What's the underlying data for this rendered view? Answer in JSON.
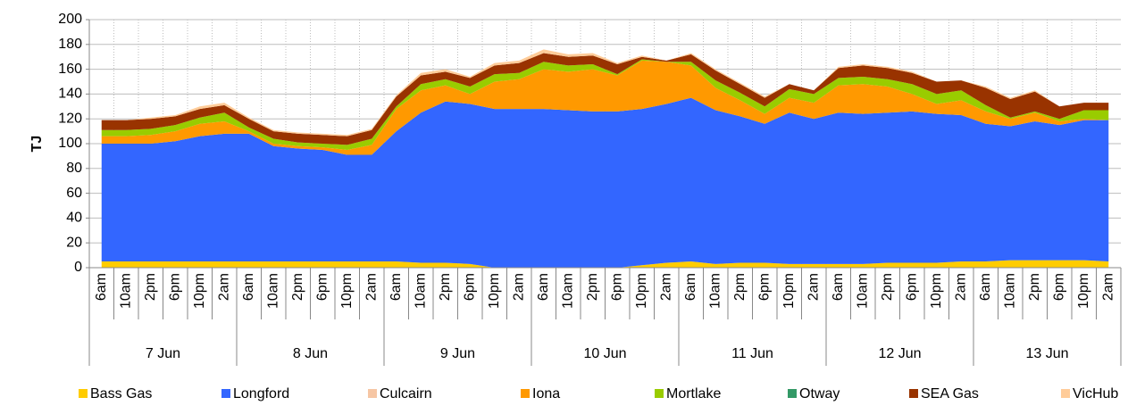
{
  "chart_data": {
    "type": "stacked-area",
    "y_label": "TJ",
    "categories": [
      "6am",
      "10am",
      "2pm",
      "6pm",
      "10pm",
      "2am",
      "6am",
      "10am",
      "2pm",
      "6pm",
      "10pm",
      "2am",
      "6am",
      "10am",
      "2pm",
      "6pm",
      "10pm",
      "2am",
      "6am",
      "10am",
      "2pm",
      "6pm",
      "10pm",
      "2am",
      "6am",
      "10am",
      "2pm",
      "6pm",
      "10pm",
      "2am",
      "6am",
      "10am",
      "2pm",
      "6pm",
      "10pm",
      "2am",
      "6am",
      "10am",
      "2pm",
      "6pm",
      "10pm",
      "2am"
    ],
    "groups": [
      "7 Jun",
      "8 Jun",
      "9 Jun",
      "10 Jun",
      "11 Jun",
      "12 Jun",
      "13 Jun"
    ],
    "ylim": [
      0,
      200
    ],
    "yticks": [
      0,
      20,
      40,
      60,
      80,
      100,
      120,
      140,
      160,
      180,
      200
    ],
    "grid": true,
    "series": [
      {
        "name": "Bass Gas",
        "color": "#ffcc00",
        "values": [
          5,
          5,
          5,
          5,
          5,
          5,
          5,
          5,
          5,
          5,
          5,
          5,
          5,
          4,
          4,
          3,
          0,
          0,
          0,
          0,
          0,
          0,
          2,
          4,
          5,
          3,
          4,
          4,
          3,
          3,
          3,
          3,
          4,
          4,
          4,
          5,
          5,
          6,
          6,
          6,
          6,
          5
        ]
      },
      {
        "name": "Longford",
        "color": "#3366ff",
        "values": [
          95,
          95,
          95,
          97,
          101,
          103,
          103,
          93,
          91,
          90,
          86,
          86,
          105,
          121,
          130,
          129,
          128,
          128,
          128,
          127,
          126,
          126,
          126,
          128,
          132,
          124,
          118,
          112,
          122,
          117,
          122,
          121,
          121,
          122,
          120,
          118,
          111,
          108,
          112,
          109,
          113,
          114
        ]
      },
      {
        "name": "Culcairn",
        "color": "#f6c6a4",
        "values": [
          0,
          0,
          0,
          0,
          0,
          0,
          0,
          0,
          0,
          0,
          0,
          0,
          0,
          0,
          0,
          0,
          0,
          0,
          0,
          0,
          0,
          0,
          0,
          0,
          0,
          0,
          0,
          0,
          0,
          0,
          0,
          0,
          0,
          0,
          0,
          0,
          0,
          0,
          0,
          0,
          0,
          0
        ]
      },
      {
        "name": "Iona",
        "color": "#ff9900",
        "values": [
          6,
          6,
          7,
          8,
          10,
          10,
          2,
          2,
          2,
          2,
          4,
          8,
          18,
          18,
          13,
          8,
          22,
          24,
          32,
          31,
          34,
          29,
          39,
          34,
          26,
          18,
          13,
          8,
          12,
          13,
          22,
          24,
          21,
          14,
          8,
          12,
          10,
          6,
          7,
          3,
          1,
          0
        ]
      },
      {
        "name": "Mortlake",
        "color": "#99cc00",
        "values": [
          5,
          5,
          5,
          5,
          5,
          7,
          3,
          4,
          3,
          3,
          4,
          5,
          2,
          5,
          5,
          6,
          6,
          5,
          6,
          5,
          4,
          1,
          1,
          0,
          3,
          6,
          6,
          6,
          7,
          7,
          6,
          6,
          6,
          8,
          8,
          8,
          5,
          1,
          1,
          2,
          7,
          8
        ]
      },
      {
        "name": "Otway",
        "color": "#339966",
        "values": [
          0,
          0,
          0,
          0,
          0,
          0,
          0,
          0,
          0,
          0,
          0,
          0,
          0,
          0,
          0,
          0,
          0,
          0,
          0,
          0,
          0,
          0,
          0,
          0,
          0,
          0,
          0,
          0,
          0,
          0,
          0,
          0,
          0,
          0,
          0,
          0,
          0,
          0,
          0,
          0,
          0,
          0
        ]
      },
      {
        "name": "SEA Gas",
        "color": "#993300",
        "values": [
          8,
          8,
          8,
          7,
          7,
          6,
          7,
          6,
          7,
          7,
          7,
          7,
          8,
          7,
          6,
          7,
          7,
          8,
          7,
          7,
          7,
          8,
          2,
          1,
          6,
          8,
          7,
          7,
          4,
          3,
          8,
          9,
          9,
          9,
          10,
          8,
          14,
          15,
          16,
          10,
          6,
          6
        ]
      },
      {
        "name": "VicHub",
        "color": "#ffcc99",
        "values": [
          0,
          0,
          1,
          1,
          2,
          2,
          1,
          1,
          1,
          1,
          1,
          1,
          1,
          2,
          2,
          1,
          2,
          2,
          3,
          2,
          2,
          1,
          1,
          0,
          1,
          1,
          1,
          1,
          0,
          0,
          1,
          1,
          1,
          1,
          0,
          0,
          1,
          1,
          1,
          0,
          0,
          0
        ]
      }
    ]
  }
}
